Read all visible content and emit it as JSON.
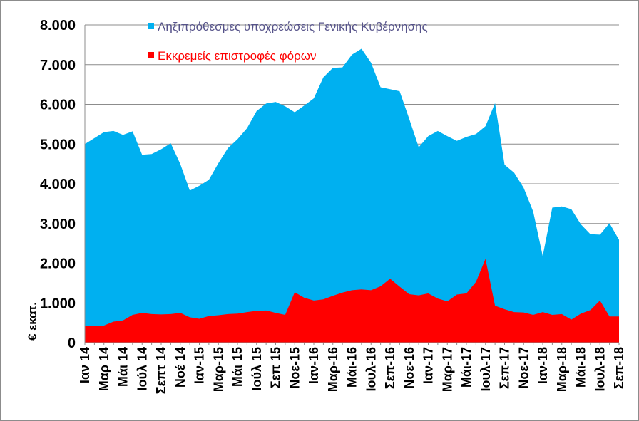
{
  "chart_data": {
    "type": "area",
    "title": "",
    "xlabel": "",
    "ylabel": "€ εκατ.",
    "ylim": [
      0,
      8000
    ],
    "yticks": [
      "0",
      "1.000",
      "2.000",
      "3.000",
      "4.000",
      "5.000",
      "6.000",
      "7.000",
      "8.000"
    ],
    "ytick_values": [
      0,
      1000,
      2000,
      3000,
      4000,
      5000,
      6000,
      7000,
      8000
    ],
    "x_tick_labels": [
      {
        "label": "Ιαν 14",
        "index": 0
      },
      {
        "label": "Μαρ 14",
        "index": 2
      },
      {
        "label": "Μάι 14",
        "index": 4
      },
      {
        "label": "Ιούλ 14",
        "index": 6
      },
      {
        "label": "Σεπτ 14",
        "index": 8
      },
      {
        "label": "Νοέ 14",
        "index": 10
      },
      {
        "label": "Ιαν-15",
        "index": 12
      },
      {
        "label": "Μαρ-15",
        "index": 14
      },
      {
        "label": "Μάι 15",
        "index": 16
      },
      {
        "label": "Ιούλ 15",
        "index": 18
      },
      {
        "label": "Σεπ 15",
        "index": 20
      },
      {
        "label": "Νοε-15",
        "index": 22
      },
      {
        "label": "Ιαν-16",
        "index": 24
      },
      {
        "label": "Μαρ-16",
        "index": 26
      },
      {
        "label": "Μάι-16",
        "index": 28
      },
      {
        "label": "Ιουλ-16",
        "index": 30
      },
      {
        "label": "Σεπ-16",
        "index": 32
      },
      {
        "label": "Νοε-16",
        "index": 34
      },
      {
        "label": "Ιαν-17",
        "index": 36
      },
      {
        "label": "Μαρ-17",
        "index": 38
      },
      {
        "label": "Μάι-17",
        "index": 40
      },
      {
        "label": "Ιουλ-17",
        "index": 42
      },
      {
        "label": "Σεπ-17",
        "index": 44
      },
      {
        "label": "Νοε-17",
        "index": 46
      },
      {
        "label": "Ιαν-18",
        "index": 48
      },
      {
        "label": "Μαρ-18",
        "index": 50
      },
      {
        "label": "Μάι-18",
        "index": 52
      },
      {
        "label": "Ιουλ-18",
        "index": 54
      },
      {
        "label": "Σεπ-18",
        "index": 56
      }
    ],
    "series": [
      {
        "name": "Ληξιπρόθεσμες υποχρεώσεις Γενικής Κυβέρνησης",
        "color": "#00b0f0",
        "values": [
          5000,
          5150,
          5300,
          5330,
          5230,
          5320,
          4730,
          4750,
          4870,
          5020,
          4500,
          3830,
          3950,
          4100,
          4520,
          4900,
          5120,
          5400,
          5830,
          6020,
          6060,
          5950,
          5800,
          5970,
          6150,
          6680,
          6920,
          6930,
          7250,
          7400,
          7050,
          6430,
          6380,
          6330,
          5640,
          4920,
          5200,
          5330,
          5200,
          5080,
          5180,
          5250,
          5450,
          6030,
          4480,
          4280,
          3900,
          3300,
          2180,
          3400,
          3430,
          3360,
          2980,
          2730,
          2720,
          3010,
          2590
        ]
      },
      {
        "name": "Εκκρεμείς επιστροφές φόρων",
        "color": "#ff0000",
        "values": [
          430,
          430,
          430,
          530,
          560,
          700,
          750,
          720,
          710,
          720,
          750,
          640,
          600,
          670,
          690,
          720,
          730,
          770,
          800,
          810,
          750,
          700,
          1270,
          1130,
          1060,
          1090,
          1180,
          1260,
          1320,
          1340,
          1320,
          1420,
          1610,
          1410,
          1220,
          1190,
          1240,
          1110,
          1040,
          1210,
          1240,
          1530,
          2110,
          930,
          840,
          770,
          760,
          700,
          770,
          700,
          720,
          580,
          730,
          820,
          1060,
          660,
          660
        ]
      }
    ]
  }
}
